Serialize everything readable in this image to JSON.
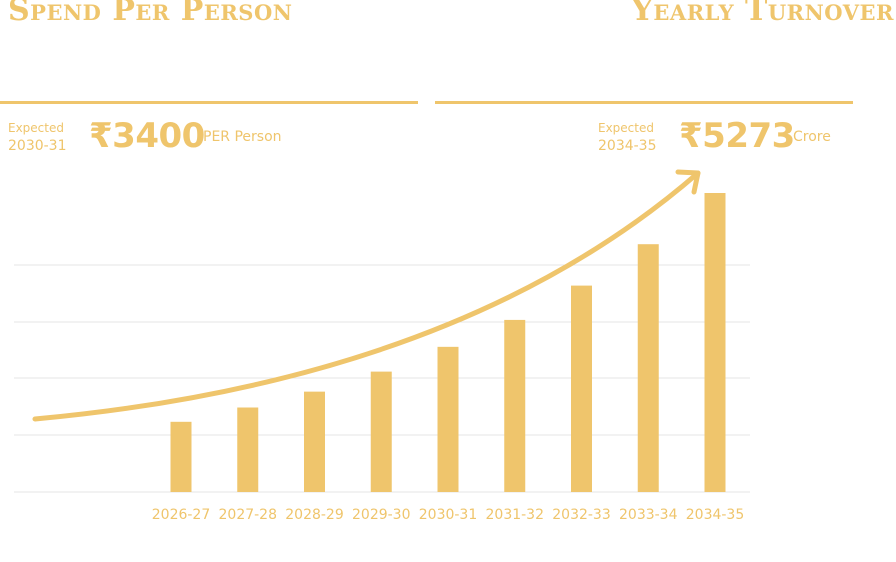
{
  "colors": {
    "accent": "#efc56c",
    "gridline": "#e6e6e6",
    "background": "#ffffff"
  },
  "headings": {
    "left": "Spend Per Person",
    "right": "Yearly Turnover"
  },
  "stats": {
    "spend": {
      "expected_label": "Expected",
      "year": "2030-31",
      "currency_symbol": "₹",
      "value": "3400",
      "unit": "PER Person"
    },
    "turnover": {
      "expected_label": "Expected",
      "year": "2034-35",
      "currency_symbol": "₹",
      "value": "5273",
      "unit": "Crore"
    }
  },
  "chart_data": {
    "type": "bar",
    "categories": [
      "2026-27",
      "2027-28",
      "2028-29",
      "2029-30",
      "2030-31",
      "2031-32",
      "2032-33",
      "2033-34",
      "2034-35"
    ],
    "series": [
      {
        "values": [
          1238,
          1490,
          1770,
          2123,
          2560,
          3035,
          3640,
          4370,
          5273
        ]
      }
    ],
    "ylabel": "",
    "xlabel": "",
    "ylim": [
      0,
      5273
    ],
    "grid": true,
    "trend_arrow": true
  }
}
